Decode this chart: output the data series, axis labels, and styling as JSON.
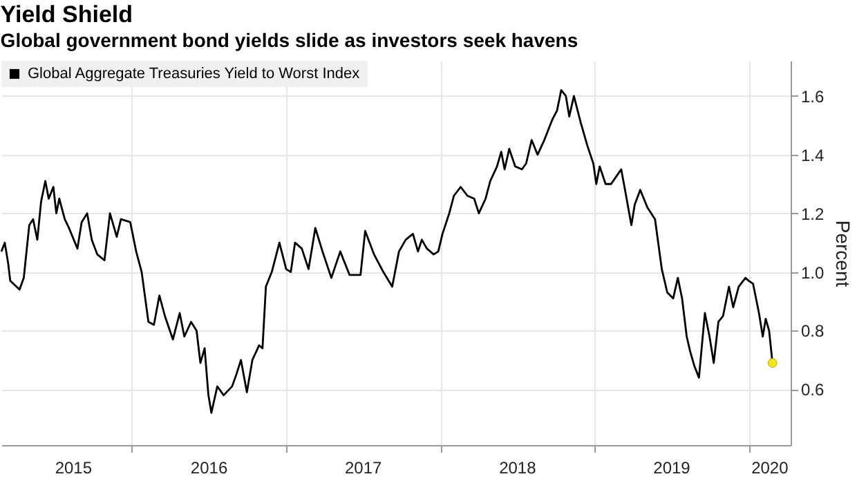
{
  "chart_data": {
    "type": "line",
    "title": "Yield Shield",
    "subtitle": "Global government bond yields slide as investors seek havens",
    "ylabel": "Percent",
    "xlim": [
      "2015-02-27",
      "2020-04-09"
    ],
    "ylim": [
      0.41,
      1.72
    ],
    "xticks": [
      {
        "value": "2015-08-15",
        "label": "2015"
      },
      {
        "value": "2016-01-01",
        "label": null
      },
      {
        "value": "2016-07-01",
        "label": "2016"
      },
      {
        "value": "2017-01-01",
        "label": null
      },
      {
        "value": "2017-07-01",
        "label": "2017"
      },
      {
        "value": "2018-01-01",
        "label": null
      },
      {
        "value": "2018-07-01",
        "label": "2018"
      },
      {
        "value": "2019-01-01",
        "label": null
      },
      {
        "value": "2019-07-01",
        "label": "2019"
      },
      {
        "value": "2020-01-01",
        "label": null
      },
      {
        "value": "2020-02-18",
        "label": "2020"
      }
    ],
    "yticks": [
      0.6,
      0.8,
      {
        "value": 1,
        "label": "1.0"
      },
      1.2,
      1.4,
      1.6
    ],
    "grid": true,
    "legend": "top left",
    "series": [
      {
        "name": "Global Aggregate Treasuries Yield to Worst Index",
        "color": "#000000",
        "marker": "none",
        "line_style": "solid",
        "x": [
          "2015-02-27",
          "2015-03-07",
          "2015-03-15",
          "2015-03-20",
          "2015-04-11",
          "2015-04-21",
          "2015-05-04",
          "2015-05-13",
          "2015-05-23",
          "2015-06-01",
          "2015-06-11",
          "2015-06-19",
          "2015-06-30",
          "2015-07-07",
          "2015-07-14",
          "2015-07-27",
          "2015-08-06",
          "2015-08-26",
          "2015-09-05",
          "2015-09-18",
          "2015-09-29",
          "2015-10-12",
          "2015-10-29",
          "2015-11-11",
          "2015-11-27",
          "2015-12-07",
          "2015-12-29",
          "2016-01-12",
          "2016-01-25",
          "2016-02-10",
          "2016-02-23",
          "2016-03-07",
          "2016-03-20",
          "2016-04-08",
          "2016-04-24",
          "2016-05-05",
          "2016-05-21",
          "2016-06-03",
          "2016-06-12",
          "2016-06-22",
          "2016-07-01",
          "2016-07-08",
          "2016-07-22",
          "2016-08-06",
          "2016-08-26",
          "2016-09-05",
          "2016-09-16",
          "2016-09-30",
          "2016-10-13",
          "2016-10-29",
          "2016-11-06",
          "2016-11-14",
          "2016-11-28",
          "2016-12-16",
          "2017-01-01",
          "2017-01-12",
          "2017-01-22",
          "2017-02-07",
          "2017-02-23",
          "2017-03-11",
          "2017-03-28",
          "2017-04-18",
          "2017-05-09",
          "2017-05-31",
          "2017-06-26",
          "2017-07-07",
          "2017-07-28",
          "2017-08-19",
          "2017-09-09",
          "2017-09-25",
          "2017-10-11",
          "2017-10-28",
          "2017-11-09",
          "2017-11-18",
          "2017-11-30",
          "2017-12-16",
          "2017-12-27",
          "2018-01-06",
          "2018-01-22",
          "2018-02-02",
          "2018-02-18",
          "2018-03-06",
          "2018-03-22",
          "2018-04-02",
          "2018-04-18",
          "2018-04-29",
          "2018-05-15",
          "2018-05-25",
          "2018-06-02",
          "2018-06-13",
          "2018-06-27",
          "2018-07-13",
          "2018-07-23",
          "2018-08-05",
          "2018-08-19",
          "2018-09-04",
          "2018-09-23",
          "2018-10-04",
          "2018-10-14",
          "2018-10-25",
          "2018-11-02",
          "2018-11-13",
          "2018-11-29",
          "2018-12-15",
          "2018-12-29",
          "2019-01-05",
          "2019-01-13",
          "2019-01-27",
          "2019-02-09",
          "2019-03-05",
          "2019-03-14",
          "2019-03-29",
          "2019-04-06",
          "2019-04-19",
          "2019-05-06",
          "2019-05-24",
          "2019-06-09",
          "2019-06-22",
          "2019-07-06",
          "2019-07-17",
          "2019-07-27",
          "2019-08-07",
          "2019-08-15",
          "2019-08-25",
          "2019-09-05",
          "2019-09-19",
          "2019-09-30",
          "2019-10-10",
          "2019-10-21",
          "2019-11-01",
          "2019-11-15",
          "2019-11-25",
          "2019-12-08",
          "2019-12-24",
          "2020-01-01",
          "2020-01-11",
          "2020-01-25",
          "2020-02-03",
          "2020-02-10",
          "2020-02-18",
          "2020-02-26"
        ],
        "values": [
          1.07,
          1.1,
          1.03,
          0.97,
          0.94,
          0.98,
          1.16,
          1.18,
          1.11,
          1.24,
          1.31,
          1.25,
          1.29,
          1.2,
          1.25,
          1.18,
          1.15,
          1.08,
          1.17,
          1.2,
          1.11,
          1.06,
          1.04,
          1.2,
          1.12,
          1.18,
          1.17,
          1.07,
          1.0,
          0.83,
          0.82,
          0.92,
          0.85,
          0.77,
          0.86,
          0.78,
          0.83,
          0.8,
          0.69,
          0.74,
          0.58,
          0.52,
          0.61,
          0.58,
          0.61,
          0.65,
          0.7,
          0.59,
          0.7,
          0.75,
          0.74,
          0.95,
          1.0,
          1.1,
          1.01,
          1.0,
          1.1,
          1.08,
          1.01,
          1.15,
          1.07,
          0.98,
          1.07,
          0.99,
          0.99,
          1.14,
          1.06,
          1.0,
          0.95,
          1.07,
          1.11,
          1.13,
          1.07,
          1.11,
          1.08,
          1.06,
          1.07,
          1.13,
          1.2,
          1.26,
          1.29,
          1.26,
          1.25,
          1.2,
          1.25,
          1.31,
          1.36,
          1.41,
          1.35,
          1.42,
          1.36,
          1.35,
          1.37,
          1.45,
          1.4,
          1.45,
          1.52,
          1.55,
          1.62,
          1.6,
          1.53,
          1.6,
          1.51,
          1.43,
          1.37,
          1.3,
          1.36,
          1.3,
          1.3,
          1.35,
          1.28,
          1.16,
          1.23,
          1.28,
          1.22,
          1.18,
          1.01,
          0.93,
          0.91,
          0.98,
          0.91,
          0.78,
          0.73,
          0.68,
          0.64,
          0.86,
          0.78,
          0.69,
          0.83,
          0.85,
          0.95,
          0.88,
          0.95,
          0.98,
          0.97,
          0.96,
          0.86,
          0.78,
          0.84,
          0.8,
          0.69
        ]
      },
      {
        "type": "scatter",
        "color": "#f5e61a",
        "marker": "circle",
        "x": [
          "2020-02-26"
        ],
        "values": [
          0.69
        ]
      }
    ]
  }
}
